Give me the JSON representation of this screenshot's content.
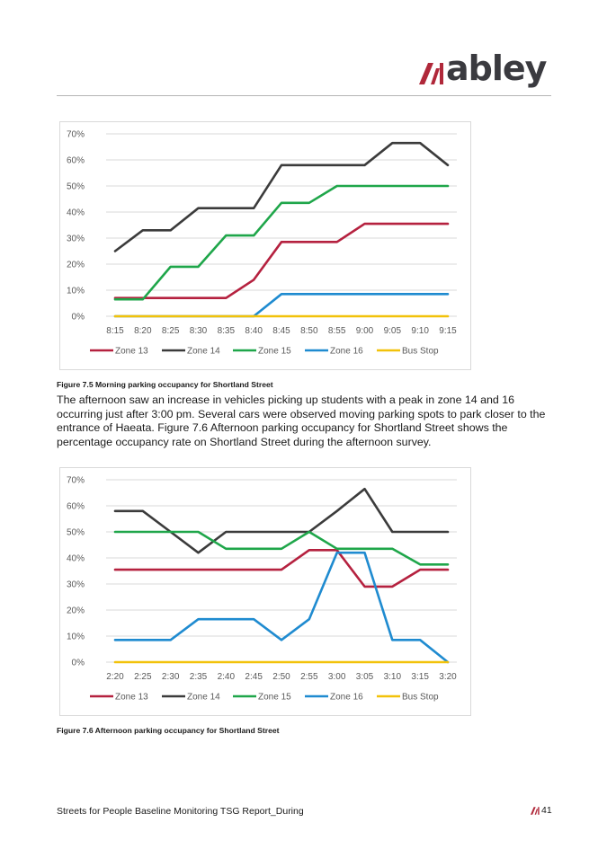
{
  "header": {
    "logo_text": "abley",
    "brand_colors": {
      "mark": "#b0283a",
      "text": "#3a3a3f"
    }
  },
  "body": {
    "paragraph": "The afternoon saw an increase in vehicles picking up students with a peak in zone 14 and 16 occurring just after 3:00 pm. Several cars were observed moving parking spots to park closer to the entrance of Haeata. Figure 7.6 Afternoon parking occupancy for Shortland Street shows the percentage occupancy rate on Shortland Street during the afternoon survey."
  },
  "captions": {
    "figure_7_5": "Figure 7.5 Morning parking occupancy for Shortland Street",
    "figure_7_6": "Figure 7.6 Afternoon parking occupancy for Shortland Street"
  },
  "footer": {
    "report_title": "Streets for People Baseline Monitoring TSG Report_During",
    "page_number": "41"
  },
  "chart_data": [
    {
      "type": "line",
      "title": "",
      "xlabel": "",
      "ylabel": "",
      "ylim": [
        0,
        70
      ],
      "y_ticks": [
        "0%",
        "10%",
        "20%",
        "30%",
        "40%",
        "50%",
        "60%",
        "70%"
      ],
      "grid": true,
      "legend_position": "bottom",
      "categories": [
        "8:15",
        "8:20",
        "8:25",
        "8:30",
        "8:35",
        "8:40",
        "8:45",
        "8:50",
        "8:55",
        "9:00",
        "9:05",
        "9:10",
        "9:15"
      ],
      "series": [
        {
          "name": "Zone 13",
          "color": "#b5213f",
          "values": [
            7,
            7,
            7,
            7,
            7,
            14,
            28.5,
            28.5,
            28.5,
            35.5,
            35.5,
            35.5,
            35.5
          ]
        },
        {
          "name": "Zone 14",
          "color": "#3b3b3b",
          "values": [
            25,
            33,
            33,
            41.5,
            41.5,
            41.5,
            58,
            58,
            58,
            58,
            66.5,
            66.5,
            58
          ]
        },
        {
          "name": "Zone 15",
          "color": "#1fa64a",
          "values": [
            6.5,
            6.5,
            19,
            19,
            31,
            31,
            43.5,
            43.5,
            50,
            50,
            50,
            50,
            50
          ]
        },
        {
          "name": "Zone 16",
          "color": "#1f8bd0",
          "values": [
            0,
            0,
            0,
            0,
            0,
            0,
            8.5,
            8.5,
            8.5,
            8.5,
            8.5,
            8.5,
            8.5
          ]
        },
        {
          "name": "Bus Stop",
          "color": "#f2c20a",
          "values": [
            0,
            0,
            0,
            0,
            0,
            0,
            0,
            0,
            0,
            0,
            0,
            0,
            0
          ]
        }
      ]
    },
    {
      "type": "line",
      "title": "",
      "xlabel": "",
      "ylabel": "",
      "ylim": [
        0,
        70
      ],
      "y_ticks": [
        "0%",
        "10%",
        "20%",
        "30%",
        "40%",
        "50%",
        "60%",
        "70%"
      ],
      "grid": true,
      "legend_position": "bottom",
      "categories": [
        "2:20",
        "2:25",
        "2:30",
        "2:35",
        "2:40",
        "2:45",
        "2:50",
        "2:55",
        "3:00",
        "3:05",
        "3:10",
        "3:15",
        "3:20"
      ],
      "series": [
        {
          "name": "Zone 13",
          "color": "#b5213f",
          "values": [
            35.5,
            35.5,
            35.5,
            35.5,
            35.5,
            35.5,
            35.5,
            43,
            43,
            29,
            29,
            35.5,
            35.5
          ]
        },
        {
          "name": "Zone 14",
          "color": "#3b3b3b",
          "values": [
            58,
            58,
            50,
            42,
            50,
            50,
            50,
            50,
            58,
            66.5,
            50,
            50,
            50
          ]
        },
        {
          "name": "Zone 15",
          "color": "#1fa64a",
          "values": [
            50,
            50,
            50,
            50,
            43.5,
            43.5,
            43.5,
            50,
            43.5,
            43.5,
            43.5,
            37.5,
            37.5
          ]
        },
        {
          "name": "Zone 16",
          "color": "#1f8bd0",
          "values": [
            8.5,
            8.5,
            8.5,
            16.5,
            16.5,
            16.5,
            8.5,
            16.5,
            42,
            42,
            8.5,
            8.5,
            0
          ]
        },
        {
          "name": "Bus Stop",
          "color": "#f2c20a",
          "values": [
            0,
            0,
            0,
            0,
            0,
            0,
            0,
            0,
            0,
            0,
            0,
            0,
            0
          ]
        }
      ]
    }
  ]
}
